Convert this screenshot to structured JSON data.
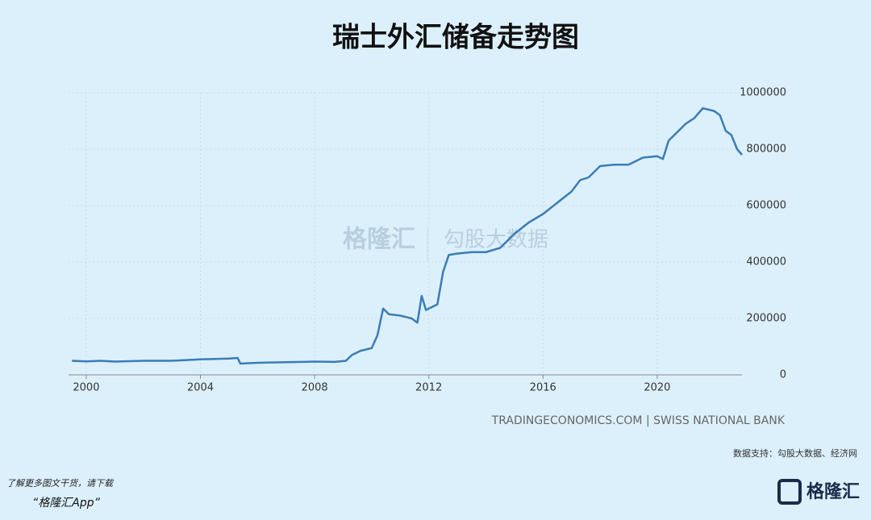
{
  "chart_data": {
    "type": "line",
    "title": "瑞士外汇储备走势图",
    "x": [
      1999.5,
      2000,
      2000.5,
      2001,
      2002,
      2003,
      2004,
      2005,
      2005.3,
      2005.4,
      2006,
      2007,
      2008,
      2008.7,
      2009.1,
      2009.3,
      2009.6,
      2010,
      2010.2,
      2010.4,
      2010.6,
      2011,
      2011.4,
      2011.6,
      2011.75,
      2011.9,
      2012.1,
      2012.3,
      2012.5,
      2012.7,
      2013,
      2013.5,
      2014,
      2014.5,
      2015,
      2015.5,
      2016,
      2016.5,
      2017,
      2017.3,
      2017.6,
      2018,
      2018.5,
      2019,
      2019.5,
      2020,
      2020.2,
      2020.4,
      2020.6,
      2021,
      2021.3,
      2021.6,
      2022,
      2022.2,
      2022.4,
      2022.6,
      2022.8,
      2022.97
    ],
    "series": [
      {
        "color": "#3a7cb8",
        "values": [
          50000,
          48000,
          50000,
          47000,
          50000,
          50000,
          55000,
          58000,
          60000,
          40000,
          43000,
          45000,
          47000,
          46000,
          50000,
          70000,
          85000,
          95000,
          140000,
          235000,
          215000,
          210000,
          200000,
          185000,
          280000,
          230000,
          240000,
          250000,
          365000,
          425000,
          430000,
          435000,
          435000,
          450000,
          500000,
          540000,
          570000,
          610000,
          650000,
          690000,
          700000,
          740000,
          745000,
          745000,
          770000,
          775000,
          765000,
          830000,
          850000,
          890000,
          910000,
          945000,
          935000,
          920000,
          865000,
          850000,
          800000,
          780000
        ]
      }
    ],
    "xlim": [
      1999.38,
      2022.97
    ],
    "xticks": [
      2000,
      2004,
      2008,
      2012,
      2016,
      2020
    ],
    "ylim": [
      0,
      1000000
    ],
    "yticks": [
      0,
      200000,
      400000,
      600000,
      800000,
      1000000
    ],
    "grid": true,
    "source": "TRADINGECONOMICS.COM | SWISS NATIONAL BANK",
    "data_support": "数据支持：勾股大数据、经济网",
    "watermark": [
      "格隆汇",
      "勾股大数据"
    ],
    "footer": [
      "了解更多图文干货，请下载",
      "“格隆汇App”"
    ],
    "logo": "格隆汇"
  }
}
